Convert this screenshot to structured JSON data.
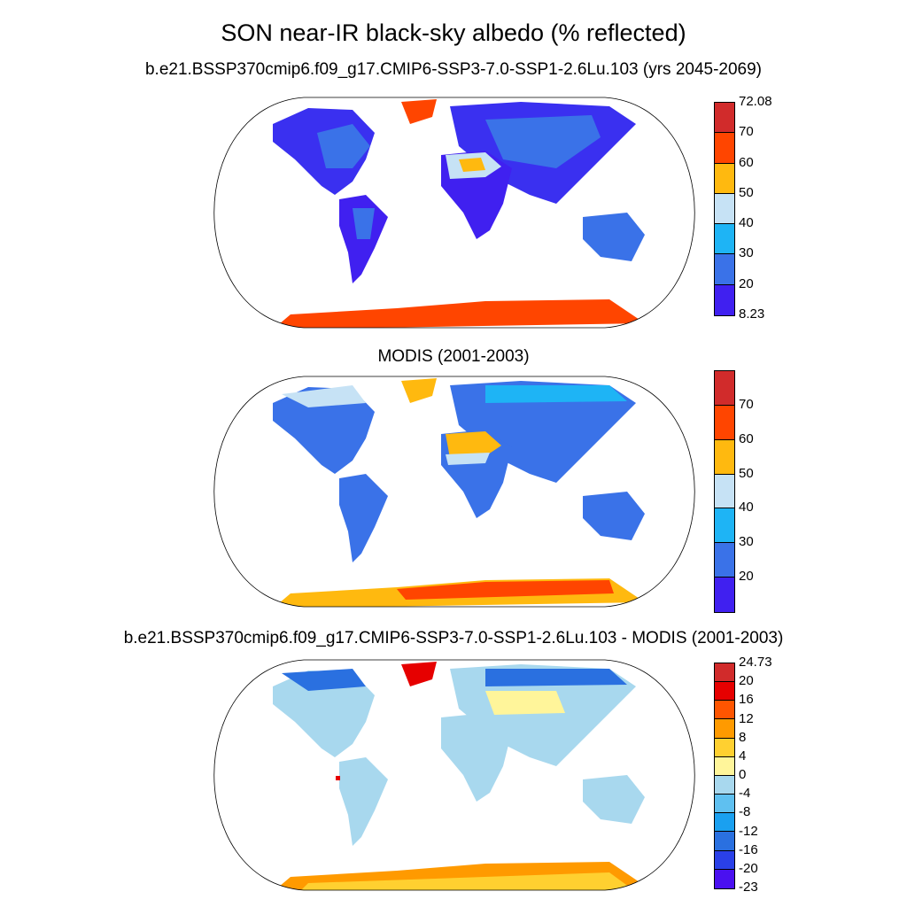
{
  "title": "SON near-IR black-sky albedo (% reflected)",
  "panels": [
    {
      "title": "b.e21.BSSP370cmip6.f09_g17.CMIP6-SSP3-7.0-SSP1-2.6Lu.103 (yrs 2045-2069)",
      "colorbar": {
        "colors": [
          "#d12b2b",
          "#ff4500",
          "#ffb90f",
          "#c6e2f5",
          "#1eb4f5",
          "#3a72e8",
          "#4020f0"
        ],
        "labels": [
          "72.08",
          "70",
          "60",
          "50",
          "40",
          "30",
          "20",
          "8.23"
        ]
      }
    },
    {
      "title": "MODIS (2001-2003)",
      "colorbar": {
        "colors": [
          "#d12b2b",
          "#ff4500",
          "#ffb90f",
          "#c6e2f5",
          "#1eb4f5",
          "#3a72e8",
          "#4020f0"
        ],
        "labels": [
          "70",
          "60",
          "50",
          "40",
          "30",
          "20"
        ]
      }
    },
    {
      "title": "b.e21.BSSP370cmip6.f09_g17.CMIP6-SSP3-7.0-SSP1-2.6Lu.103 - MODIS (2001-2003)",
      "colorbar": {
        "colors": [
          "#d12b2b",
          "#e60000",
          "#ff5500",
          "#ff9a00",
          "#ffd030",
          "#fff59a",
          "#a8d8ee",
          "#5fc0f0",
          "#1aa0f0",
          "#2a70e0",
          "#2a40e8",
          "#4a10f0"
        ],
        "labels": [
          "24.73",
          "20",
          "16",
          "12",
          "8",
          "4",
          "0",
          "-4",
          "-8",
          "-12",
          "-16",
          "-20",
          "-23"
        ]
      }
    }
  ]
}
